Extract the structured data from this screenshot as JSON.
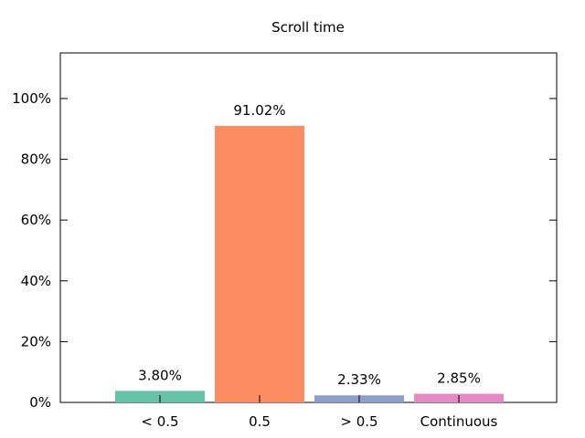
{
  "chart_data": {
    "type": "bar",
    "title": "Scroll time",
    "xlabel": "",
    "ylabel": "",
    "categories": [
      "< 0.5",
      "0.5",
      "> 0.5",
      "Continuous"
    ],
    "values": [
      3.8,
      91.02,
      2.33,
      2.85
    ],
    "value_labels": [
      "3.80%",
      "91.02%",
      "2.33%",
      "2.85%"
    ],
    "colors": [
      "#66c2a5",
      "#fc8d62",
      "#8da0cb",
      "#e78ac3"
    ],
    "ylim": [
      0,
      115
    ],
    "yticks": [
      0,
      20,
      40,
      60,
      80,
      100
    ],
    "ytick_labels": [
      "0%",
      "20%",
      "40%",
      "60%",
      "80%",
      "100%"
    ],
    "grid": false,
    "legend": "none"
  }
}
